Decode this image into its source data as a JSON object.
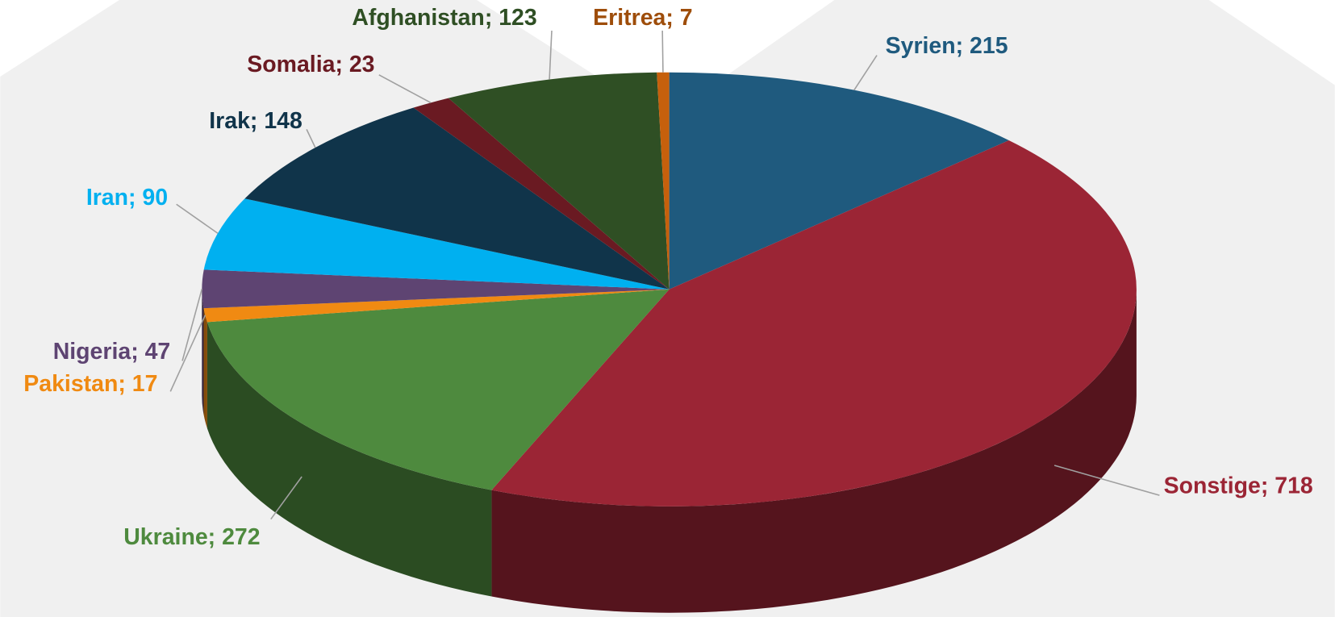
{
  "chart_data": {
    "type": "pie3d",
    "categories": [
      "Syrien",
      "Sonstige",
      "Ukraine",
      "Pakistan",
      "Nigeria",
      "Iran",
      "Irak",
      "Somalia",
      "Afghanistan",
      "Eritrea"
    ],
    "values": [
      215,
      718,
      272,
      17,
      47,
      90,
      148,
      23,
      123,
      7
    ],
    "colors": [
      "#1f5a7e",
      "#9b2535",
      "#4e8a3e",
      "#f08a12",
      "#5e4472",
      "#00b0f0",
      "#10344a",
      "#6a1a22",
      "#2f4f24",
      "#c6600c"
    ],
    "label_separator": "; "
  }
}
